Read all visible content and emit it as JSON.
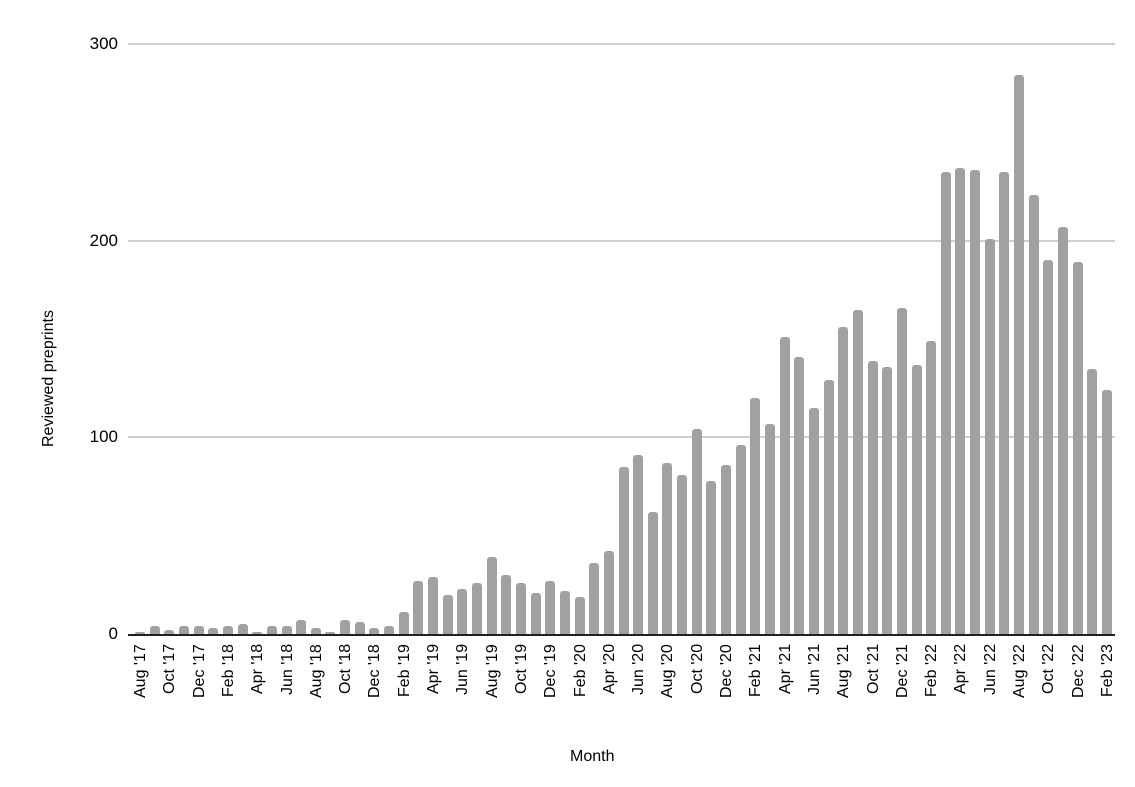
{
  "chart_data": {
    "type": "bar",
    "title": "",
    "xlabel": "Month",
    "ylabel": "Reviewed preprints",
    "ylim": [
      0,
      300
    ],
    "yticks": [
      0,
      100,
      200,
      300
    ],
    "grid": "horizontal",
    "legend": "none",
    "bar_color": "#a1a1a1",
    "gridline_color": "#cfcfcf",
    "axis_color": "#212121",
    "x_tick_every": 2,
    "categories": [
      "Aug '17",
      "Sep '17",
      "Oct '17",
      "Nov '17",
      "Dec '17",
      "Jan '18",
      "Feb '18",
      "Mar '18",
      "Apr '18",
      "May '18",
      "Jun '18",
      "Jul '18",
      "Aug '18",
      "Sep '18",
      "Oct '18",
      "Nov '18",
      "Dec '18",
      "Jan '19",
      "Feb '19",
      "Mar '19",
      "Apr '19",
      "May '19",
      "Jun '19",
      "Jul '19",
      "Aug '19",
      "Sep '19",
      "Oct '19",
      "Nov '19",
      "Dec '19",
      "Jan '20",
      "Feb '20",
      "Mar '20",
      "Apr '20",
      "May '20",
      "Jun '20",
      "Jul '20",
      "Aug '20",
      "Sep '20",
      "Oct '20",
      "Nov '20",
      "Dec '20",
      "Jan '21",
      "Feb '21",
      "Mar '21",
      "Apr '21",
      "May '21",
      "Jun '21",
      "Jul '21",
      "Aug '21",
      "Sep '21",
      "Oct '21",
      "Nov '21",
      "Dec '21",
      "Jan '22",
      "Feb '22",
      "Mar '22",
      "Apr '22",
      "May '22",
      "Jun '22",
      "Jul '22",
      "Aug '22",
      "Sep '22",
      "Oct '22",
      "Nov '22",
      "Dec '22",
      "Jan '23",
      "Feb '23"
    ],
    "values": [
      1,
      4,
      2,
      4,
      4,
      3,
      4,
      5,
      1,
      4,
      4,
      7,
      3,
      1,
      7,
      6,
      3,
      4,
      11,
      27,
      29,
      20,
      23,
      26,
      39,
      30,
      26,
      21,
      27,
      22,
      19,
      36,
      42,
      85,
      91,
      62,
      87,
      81,
      104,
      78,
      86,
      96,
      120,
      107,
      151,
      141,
      115,
      129,
      156,
      165,
      139,
      136,
      166,
      137,
      149,
      235,
      237,
      236,
      201,
      235,
      284,
      223,
      190,
      207,
      189,
      135,
      124
    ]
  }
}
